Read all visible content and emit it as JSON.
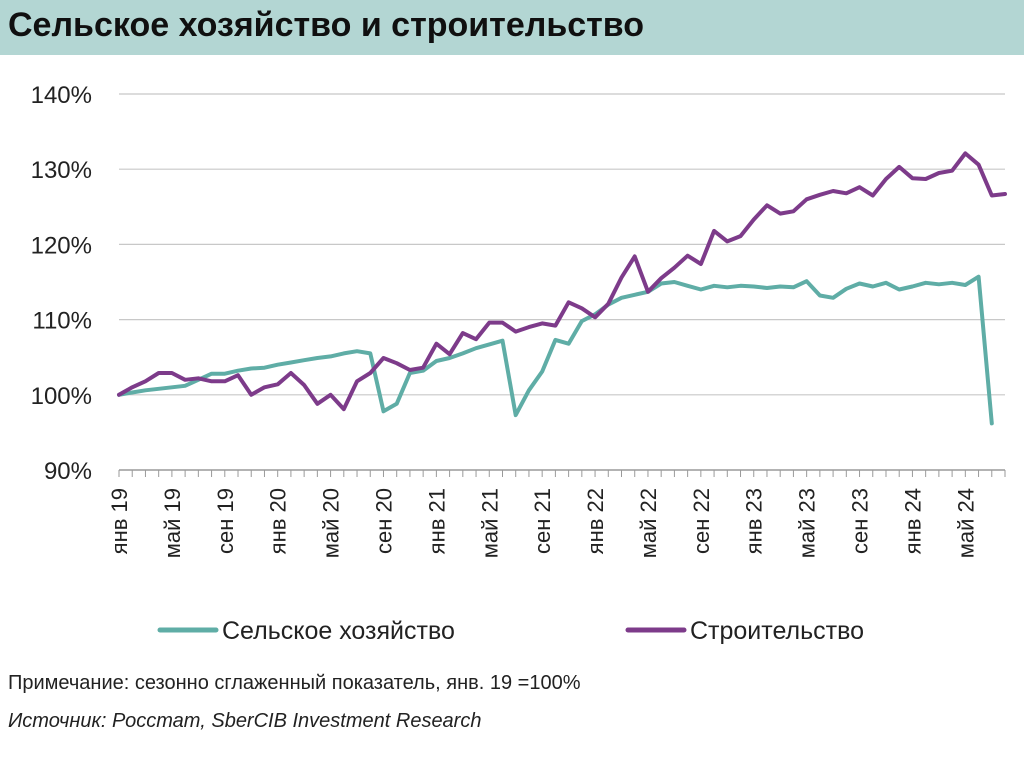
{
  "title": "Сельское хозяйство и строительство",
  "note": "Примечание: сезонно сглаженный показатель, янв. 19 =100%",
  "source": "Источник: Росстат, SberCIB Investment Research",
  "colors": {
    "agriculture": "#5fada6",
    "construction": "#7d3b8a",
    "grid": "#c8c8c8",
    "title_bg": "#b3d6d3"
  },
  "chart_data": {
    "type": "line",
    "title": "Сельское хозяйство и строительство",
    "xlabel": "",
    "ylabel": "",
    "ylim": [
      90,
      140
    ],
    "yticks": [
      90,
      100,
      110,
      120,
      130,
      140
    ],
    "ytick_labels": [
      "90%",
      "100%",
      "110%",
      "120%",
      "130%",
      "140%"
    ],
    "x_tick_labels": [
      "янв 19",
      "май 19",
      "сен 19",
      "янв 20",
      "май 20",
      "сен 20",
      "янв 21",
      "май 21",
      "сен 21",
      "янв 22",
      "май 22",
      "сен 22",
      "янв 23",
      "май 23",
      "сен 23",
      "янв 24",
      "май 24"
    ],
    "x_tick_every": 4,
    "grid": true,
    "legend_position": "bottom",
    "series": [
      {
        "name": "Сельское хозяйство",
        "color": "#5fada6",
        "values": [
          100.0,
          100.3,
          100.6,
          100.8,
          101.0,
          101.2,
          102.0,
          102.8,
          102.8,
          103.2,
          103.5,
          103.6,
          104.0,
          104.3,
          104.6,
          104.9,
          105.1,
          105.5,
          105.8,
          105.5,
          97.8,
          98.8,
          102.9,
          103.2,
          104.5,
          104.9,
          105.5,
          106.2,
          106.7,
          107.2,
          97.3,
          100.6,
          103.1,
          107.3,
          106.8,
          109.8,
          110.7,
          112.0,
          112.9,
          113.3,
          113.7,
          114.8,
          115.0,
          114.5,
          114.0,
          114.5,
          114.3,
          114.5,
          114.4,
          114.2,
          114.4,
          114.3,
          115.1,
          113.2,
          112.9,
          114.1,
          114.8,
          114.4,
          114.9,
          114.0,
          114.4,
          114.9,
          114.7,
          114.9,
          114.6,
          115.7,
          96.2
        ]
      },
      {
        "name": "Строительство",
        "color": "#7d3b8a",
        "values": [
          100.0,
          101.0,
          101.8,
          102.9,
          102.9,
          102.0,
          102.2,
          101.8,
          101.8,
          102.6,
          100.0,
          101.0,
          101.4,
          102.9,
          101.3,
          98.8,
          100.0,
          98.1,
          101.8,
          102.9,
          104.9,
          104.2,
          103.3,
          103.6,
          106.8,
          105.4,
          108.2,
          107.4,
          109.6,
          109.6,
          108.4,
          109.0,
          109.5,
          109.2,
          112.3,
          111.5,
          110.3,
          112.1,
          115.6,
          118.4,
          113.7,
          115.5,
          116.9,
          118.5,
          117.4,
          121.8,
          120.4,
          121.1,
          123.3,
          125.2,
          124.1,
          124.4,
          126.0,
          126.6,
          127.1,
          126.8,
          127.6,
          126.5,
          128.7,
          130.3,
          128.8,
          128.7,
          129.5,
          129.8,
          132.1,
          130.6,
          126.5,
          126.7
        ]
      }
    ]
  }
}
